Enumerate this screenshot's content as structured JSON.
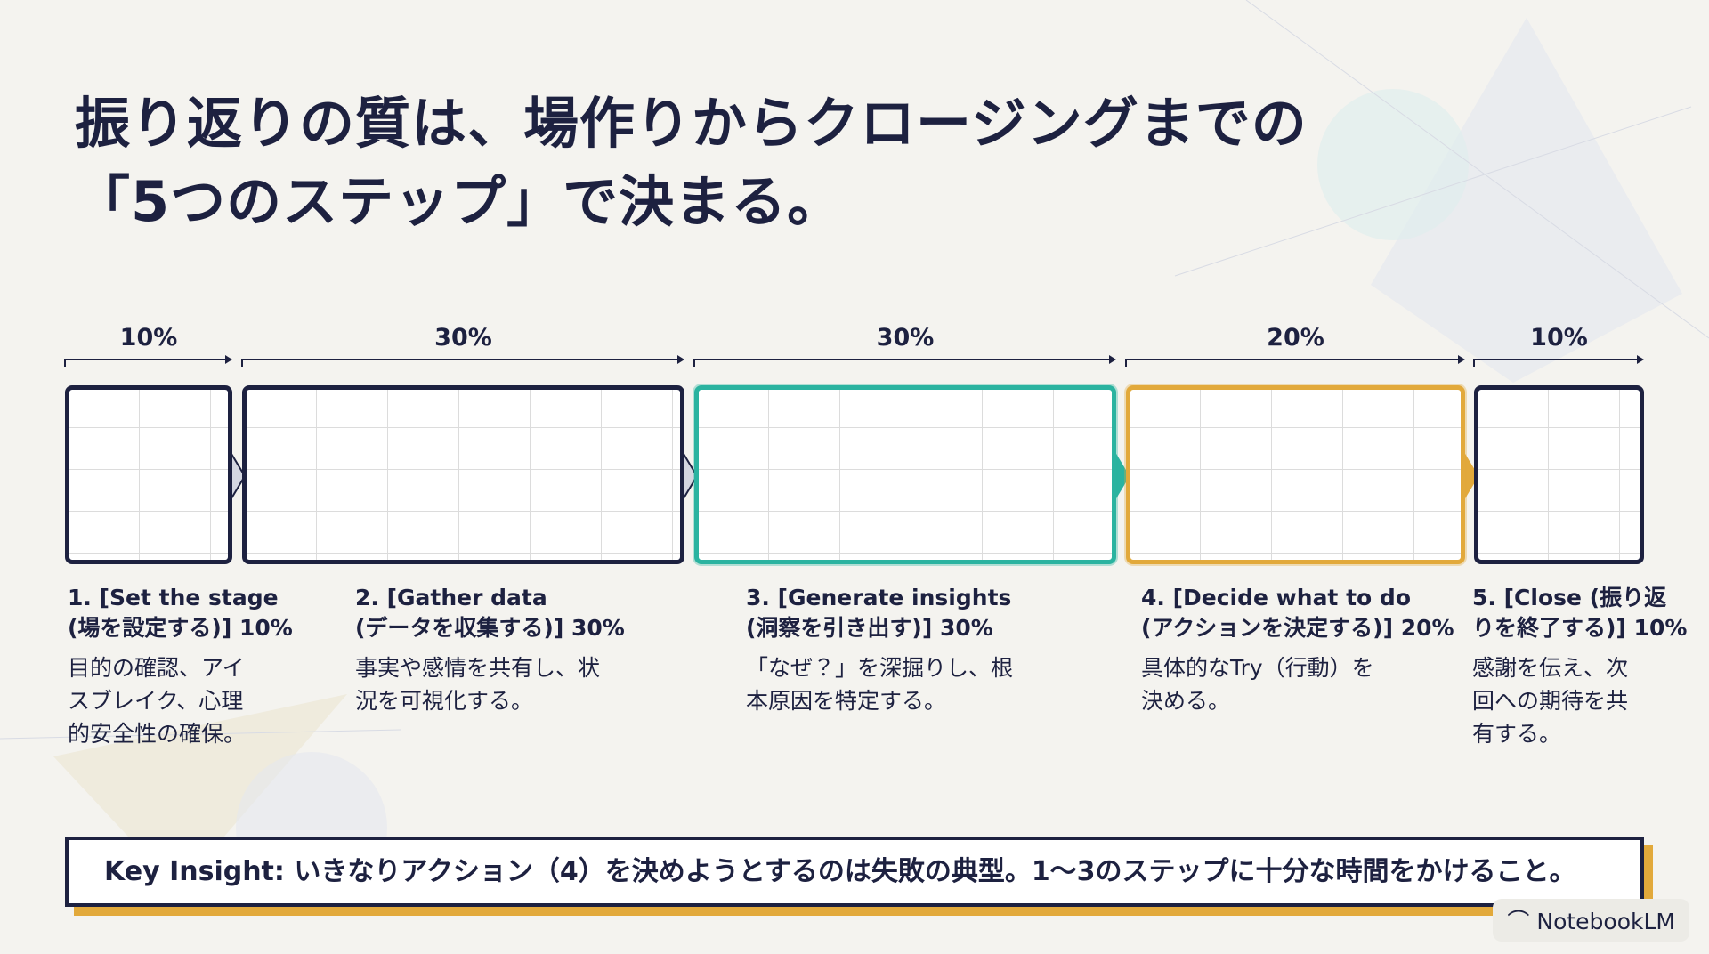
{
  "header": {
    "title_lines": [
      "振り返りの質は、場作りからクロージングまでの",
      "「5つのステップ」で決まる。"
    ]
  },
  "steps": [
    {
      "share": "10%",
      "title_lines": [
        "1. [Set the stage",
        "(場を設定する)] 10%"
      ],
      "description_lines": [
        "目的の確認、アイ",
        "スブレイク、心理",
        "的安全性の確保。"
      ]
    },
    {
      "share": "30%",
      "title_lines": [
        "2. [Gather data",
        "(データを収集する)] 30%"
      ],
      "description_lines": [
        "事実や感情を共有し、状",
        "況を可視化する。"
      ]
    },
    {
      "share": "30%",
      "title_lines": [
        "3. [Generate insights",
        "(洞察を引き出す)] 30%"
      ],
      "description_lines": [
        "「なぜ？」を深掘りし、根",
        "本原因を特定する。"
      ]
    },
    {
      "share": "20%",
      "title_lines": [
        "4. [Decide what to do",
        "(アクションを決定する)] 20%"
      ],
      "description_lines": [
        "具体的なTry（行動）を",
        "決める。"
      ]
    },
    {
      "share": "10%",
      "title_lines": [
        "5. [Close (振り返",
        "りを終了する)] 10%"
      ],
      "description_lines": [
        "感謝を伝え、次",
        "回への期待を共",
        "有する。"
      ]
    }
  ],
  "key_insight": "Key Insight: いきなりアクション（4）を決めようとするのは失敗の典型。1〜3のステップに十分な時間をかけること。",
  "badge": "NotebookLM"
}
